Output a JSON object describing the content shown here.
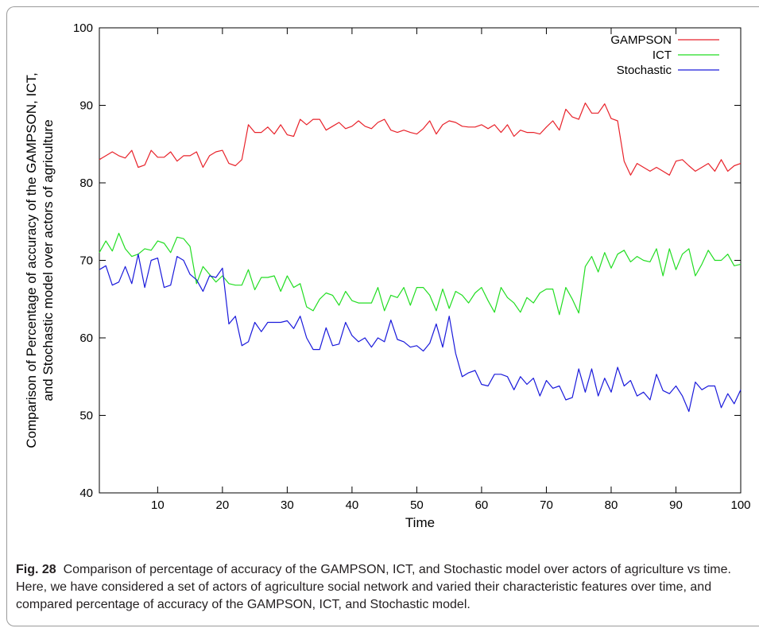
{
  "chart_data": {
    "type": "line",
    "xlabel": "Time",
    "ylabel": [
      "Comparison of Percentage of accuracy of the GAMPSON, ICT,",
      "and Stochastic model over actors of agriculture"
    ],
    "xlim": [
      1,
      100
    ],
    "ylim": [
      40,
      100
    ],
    "xticks": [
      10,
      20,
      30,
      40,
      50,
      60,
      70,
      80,
      90,
      100
    ],
    "yticks": [
      40,
      50,
      60,
      70,
      80,
      90,
      100
    ],
    "grid": false,
    "legend_position": "top-right",
    "series": [
      {
        "name": "GAMPSON",
        "color": "#e8222a",
        "values": [
          83.0,
          83.5,
          84.0,
          83.5,
          83.2,
          84.2,
          82.0,
          82.3,
          84.2,
          83.3,
          83.3,
          84.0,
          82.8,
          83.5,
          83.5,
          84.0,
          82.0,
          83.5,
          84.0,
          84.2,
          82.5,
          82.2,
          83.0,
          87.5,
          86.5,
          86.5,
          87.2,
          86.3,
          87.5,
          86.2,
          86.0,
          88.2,
          87.5,
          88.2,
          88.2,
          86.8,
          87.3,
          87.8,
          87.0,
          87.3,
          88.0,
          87.3,
          87.0,
          87.8,
          88.2,
          86.8,
          86.5,
          86.8,
          86.5,
          86.3,
          87.0,
          88.0,
          86.3,
          87.5,
          88.0,
          87.8,
          87.3,
          87.2,
          87.2,
          87.5,
          87.0,
          87.5,
          86.5,
          87.5,
          86.0,
          86.8,
          86.5,
          86.5,
          86.3,
          87.2,
          88.0,
          86.8,
          89.5,
          88.5,
          88.2,
          90.3,
          89.0,
          89.0,
          90.2,
          88.3,
          88.0,
          82.8,
          81.0,
          82.5,
          82.0,
          81.5,
          82.0,
          81.5,
          81.0,
          82.8,
          83.0,
          82.2,
          81.5,
          82.0,
          82.5,
          81.5,
          83.0,
          81.5,
          82.2,
          82.5
        ]
      },
      {
        "name": "ICT",
        "color": "#22dd22",
        "values": [
          71.0,
          72.5,
          71.2,
          73.5,
          71.5,
          70.5,
          70.8,
          71.5,
          71.3,
          72.5,
          72.2,
          71.0,
          73.0,
          72.8,
          71.8,
          67.0,
          69.2,
          68.2,
          67.2,
          68.0,
          67.0,
          66.8,
          66.8,
          68.8,
          66.2,
          67.8,
          67.8,
          68.0,
          66.0,
          68.0,
          66.5,
          67.0,
          64.0,
          63.5,
          65.0,
          65.8,
          65.5,
          64.2,
          66.0,
          64.8,
          64.5,
          64.5,
          64.5,
          66.5,
          63.5,
          65.5,
          65.2,
          66.5,
          64.2,
          66.5,
          66.5,
          65.5,
          63.5,
          66.3,
          63.8,
          66.0,
          65.5,
          64.5,
          65.8,
          66.5,
          64.8,
          63.3,
          66.5,
          65.2,
          64.5,
          63.3,
          65.2,
          64.5,
          65.8,
          66.3,
          66.3,
          63.0,
          66.5,
          65.0,
          63.2,
          69.2,
          70.5,
          68.5,
          71.0,
          69.0,
          70.8,
          71.3,
          69.8,
          70.5,
          70.0,
          69.8,
          71.5,
          68.0,
          71.5,
          68.8,
          70.8,
          71.5,
          68.0,
          69.5,
          71.3,
          70.0,
          70.0,
          70.8,
          69.3,
          69.5
        ]
      },
      {
        "name": "Stochastic",
        "color": "#1a1adb",
        "values": [
          68.8,
          69.3,
          66.8,
          67.2,
          69.2,
          67.0,
          70.8,
          66.5,
          70.0,
          70.3,
          66.5,
          66.8,
          70.5,
          70.0,
          68.2,
          67.5,
          66.0,
          68.0,
          67.8,
          69.0,
          61.8,
          62.8,
          59.0,
          59.5,
          62.0,
          60.8,
          62.0,
          62.0,
          62.0,
          62.2,
          61.2,
          62.8,
          60.0,
          58.5,
          58.5,
          61.3,
          59.0,
          59.2,
          62.0,
          60.3,
          59.5,
          60.0,
          58.8,
          60.0,
          59.5,
          62.3,
          59.8,
          59.5,
          58.8,
          59.0,
          58.3,
          59.3,
          61.8,
          58.8,
          62.8,
          58.0,
          55.0,
          55.5,
          55.8,
          54.0,
          53.8,
          55.3,
          55.3,
          55.0,
          53.3,
          55.0,
          54.0,
          54.8,
          52.5,
          54.5,
          53.5,
          53.8,
          52.0,
          52.3,
          56.0,
          53.0,
          56.0,
          52.5,
          54.8,
          53.0,
          56.2,
          53.8,
          54.5,
          52.5,
          53.0,
          52.0,
          55.3,
          53.2,
          52.8,
          53.8,
          52.5,
          50.5,
          54.3,
          53.3,
          53.8,
          53.8,
          51.0,
          52.8,
          51.5,
          53.3
        ]
      }
    ],
    "caption_label": "Fig. 28",
    "caption_text": "Comparison of percentage of accuracy of the GAMPSON, ICT, and Stochastic model over actors of agriculture vs time. Here, we have considered a set of actors of agriculture social network and varied their characteristic features over time, and compared percentage of accuracy of the GAMPSON, ICT, and Stochastic model."
  }
}
